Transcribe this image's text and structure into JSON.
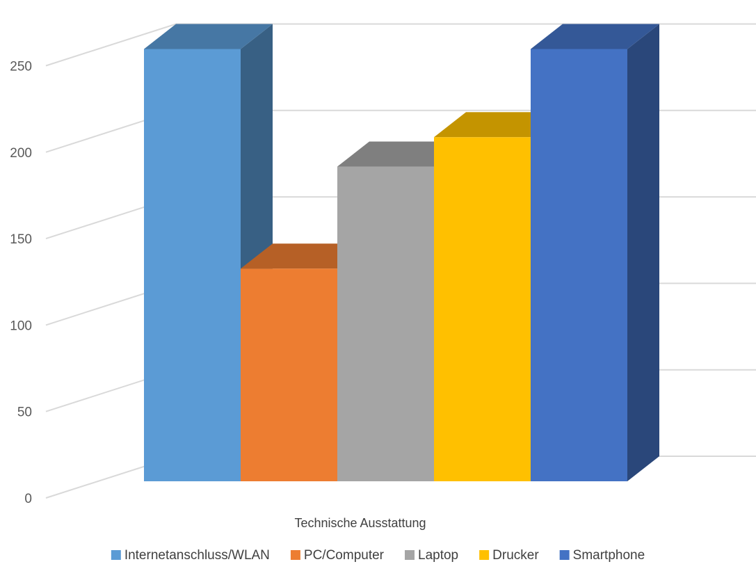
{
  "chart_data": {
    "type": "bar",
    "style": "3d-clustered-column",
    "categories": [
      "Technische Ausstattung"
    ],
    "series": [
      {
        "name": "Internetanschluss/WLAN",
        "values": [
          250
        ],
        "color": "#5B9BD5"
      },
      {
        "name": "PC/Computer",
        "values": [
          123
        ],
        "color": "#ED7D31"
      },
      {
        "name": "Laptop",
        "values": [
          182
        ],
        "color": "#A5A5A5"
      },
      {
        "name": "Drucker",
        "values": [
          199
        ],
        "color": "#FFC000"
      },
      {
        "name": "Smartphone",
        "values": [
          250
        ],
        "color": "#4472C4"
      }
    ],
    "yticks": [
      "0",
      "50",
      "100",
      "150",
      "200",
      "250"
    ],
    "ylim": [
      0,
      300
    ],
    "grid": true,
    "legend": "bottom",
    "title": "",
    "xlabel": "",
    "ylabel": ""
  }
}
